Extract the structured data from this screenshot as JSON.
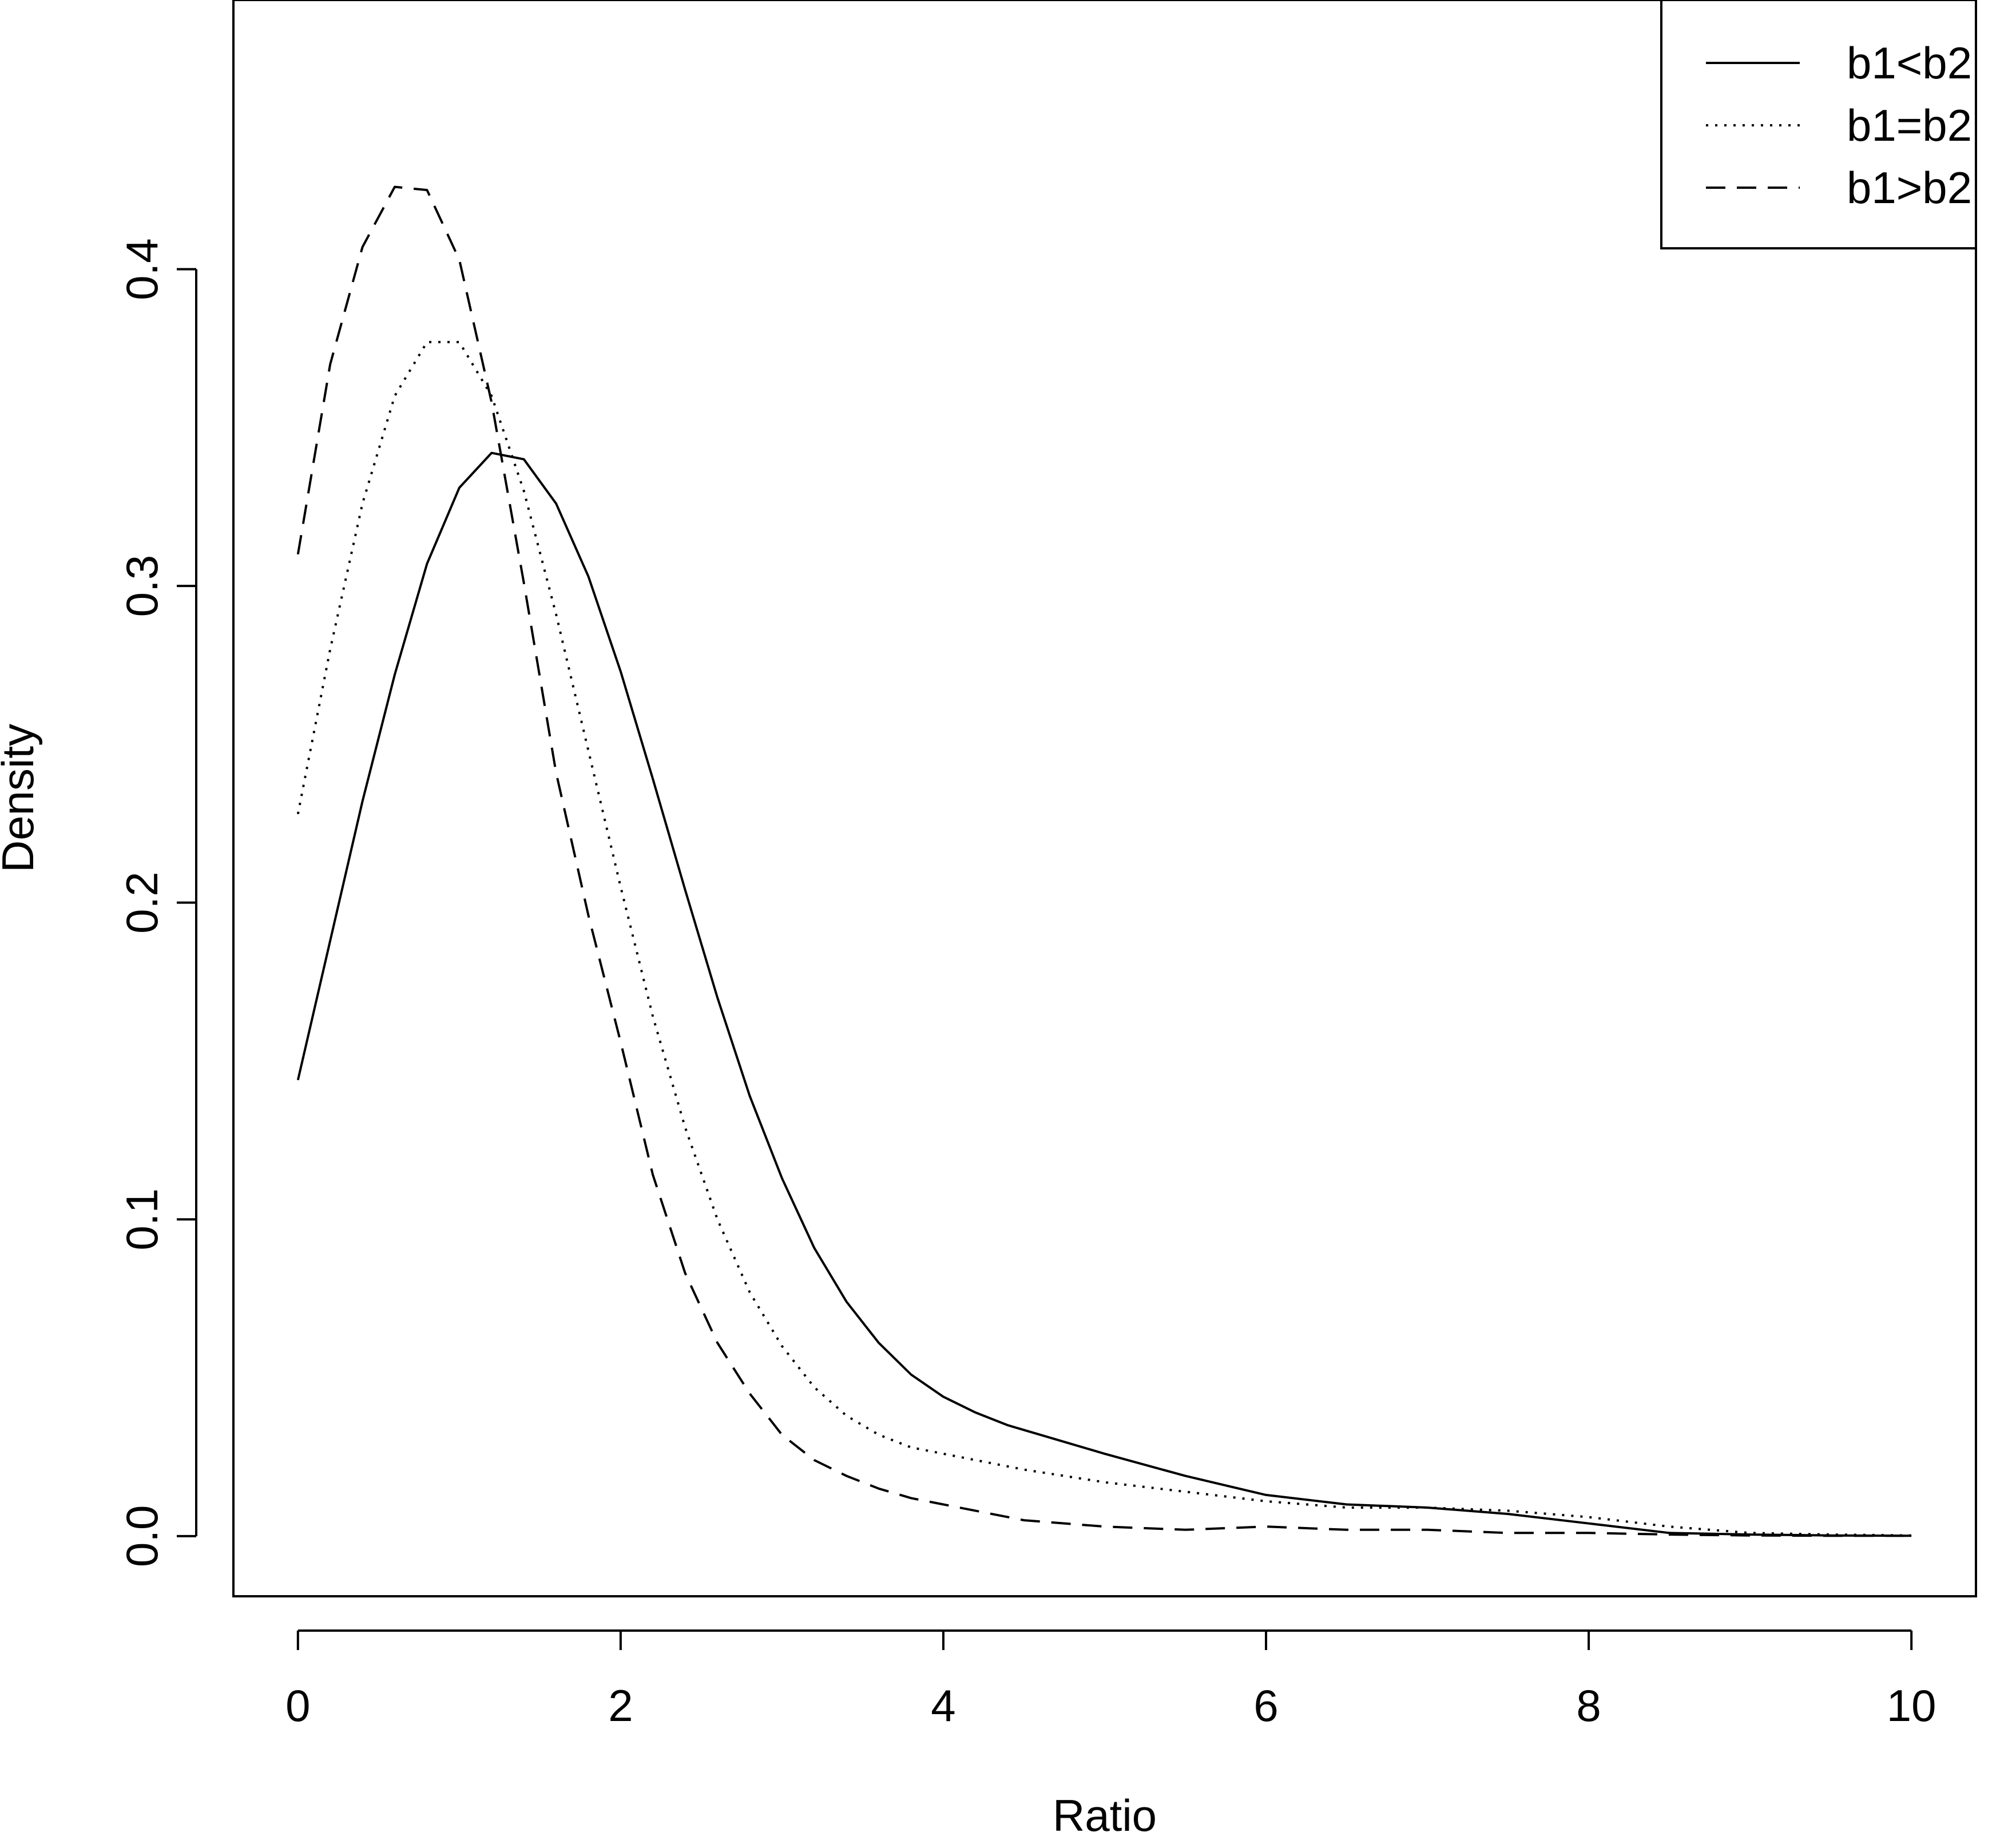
{
  "chart_data": {
    "type": "line",
    "xlabel": "Ratio",
    "ylabel": "Density",
    "xlim": [
      -0.4,
      10.4
    ],
    "ylim": [
      -0.019,
      0.485
    ],
    "xticks": [
      0,
      2,
      4,
      6,
      8,
      10
    ],
    "xtick_labels": [
      "0",
      "2",
      "4",
      "6",
      "8",
      "10"
    ],
    "yticks": [
      0.0,
      0.1,
      0.2,
      0.3,
      0.4
    ],
    "ytick_labels": [
      "0.0",
      "0.1",
      "0.2",
      "0.3",
      "0.4"
    ],
    "grid": false,
    "legend_position": "top-right",
    "series": [
      {
        "name": "b1<b2",
        "style": "solid",
        "x": [
          0,
          0.2,
          0.4,
          0.6,
          0.8,
          1.0,
          1.2,
          1.4,
          1.6,
          1.8,
          2.0,
          2.2,
          2.4,
          2.6,
          2.8,
          3.0,
          3.2,
          3.4,
          3.6,
          3.8,
          4.0,
          4.2,
          4.4,
          4.6,
          4.8,
          5.0,
          5.5,
          6.0,
          6.5,
          7.0,
          7.5,
          8.0,
          8.5,
          9.0,
          9.5,
          10.0
        ],
        "y": [
          0.144,
          0.188,
          0.232,
          0.272,
          0.307,
          0.331,
          0.342,
          0.34,
          0.326,
          0.303,
          0.273,
          0.239,
          0.204,
          0.17,
          0.139,
          0.113,
          0.091,
          0.074,
          0.061,
          0.051,
          0.044,
          0.039,
          0.035,
          0.032,
          0.029,
          0.026,
          0.019,
          0.013,
          0.01,
          0.009,
          0.007,
          0.004,
          0.001,
          0.0005,
          0.0002,
          0.0001
        ]
      },
      {
        "name": "b1=b2",
        "style": "dotted",
        "x": [
          0,
          0.2,
          0.4,
          0.6,
          0.8,
          1.0,
          1.2,
          1.4,
          1.6,
          1.8,
          2.0,
          2.2,
          2.4,
          2.6,
          2.8,
          3.0,
          3.2,
          3.4,
          3.6,
          3.8,
          4.0,
          4.5,
          5.0,
          5.5,
          6.0,
          6.5,
          7.0,
          7.5,
          8.0,
          8.5,
          9.0,
          9.5,
          10.0
        ],
        "y": [
          0.228,
          0.28,
          0.326,
          0.36,
          0.377,
          0.377,
          0.36,
          0.33,
          0.291,
          0.248,
          0.205,
          0.164,
          0.129,
          0.1,
          0.077,
          0.06,
          0.047,
          0.038,
          0.032,
          0.028,
          0.026,
          0.021,
          0.017,
          0.014,
          0.011,
          0.009,
          0.009,
          0.008,
          0.006,
          0.003,
          0.001,
          0.0005,
          0.0002
        ]
      },
      {
        "name": "b1>b2",
        "style": "dashed",
        "x": [
          0,
          0.2,
          0.4,
          0.6,
          0.8,
          1.0,
          1.2,
          1.4,
          1.6,
          1.8,
          2.0,
          2.2,
          2.4,
          2.6,
          2.8,
          3.0,
          3.2,
          3.4,
          3.6,
          3.8,
          4.0,
          4.5,
          5.0,
          5.5,
          6.0,
          6.5,
          7.0,
          7.5,
          8.0,
          8.5,
          9.0,
          9.5,
          10.0
        ],
        "y": [
          0.31,
          0.37,
          0.407,
          0.426,
          0.425,
          0.403,
          0.358,
          0.301,
          0.241,
          0.196,
          0.156,
          0.114,
          0.083,
          0.061,
          0.045,
          0.032,
          0.024,
          0.019,
          0.015,
          0.012,
          0.01,
          0.005,
          0.003,
          0.002,
          0.003,
          0.002,
          0.002,
          0.001,
          0.001,
          0.0005,
          0.0002,
          0.0001,
          0.0001
        ]
      }
    ]
  }
}
